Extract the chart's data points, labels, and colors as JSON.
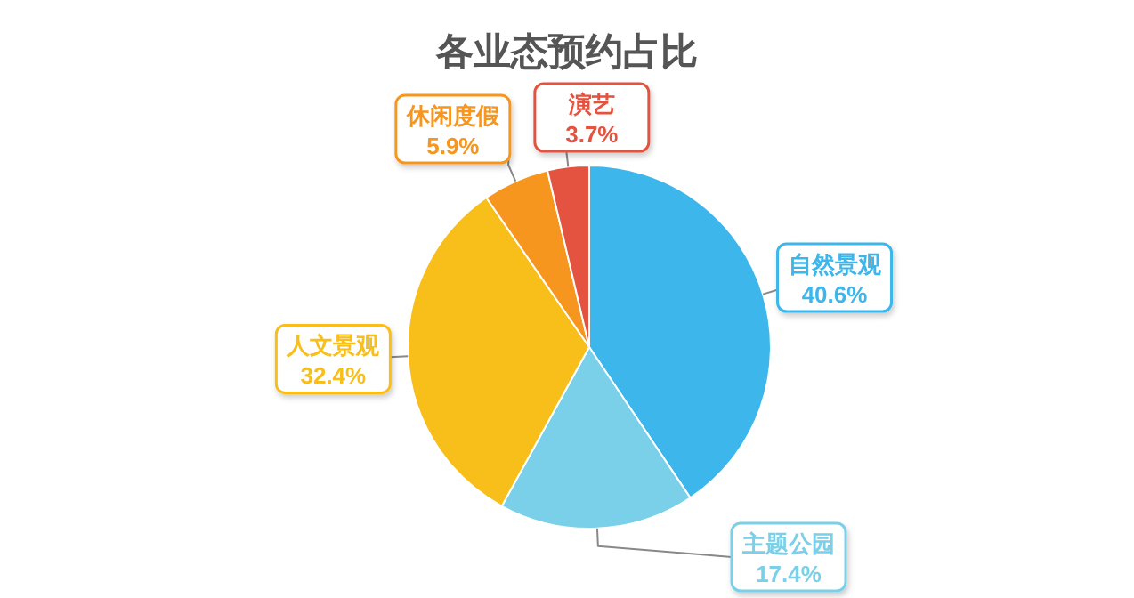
{
  "chart_data": {
    "type": "pie",
    "title": "各业态预约占比",
    "categories": [
      "自然景观",
      "主题公园",
      "人文景观",
      "休闲度假",
      "演艺"
    ],
    "values": [
      40.6,
      17.4,
      32.4,
      5.9,
      3.7
    ],
    "colors": [
      "#3db7eb",
      "#7ad0e8",
      "#f8be1a",
      "#f7961e",
      "#e4533f"
    ],
    "value_labels": [
      "40.6%",
      "17.4%",
      "32.4%",
      "5.9%",
      "3.7%"
    ]
  }
}
